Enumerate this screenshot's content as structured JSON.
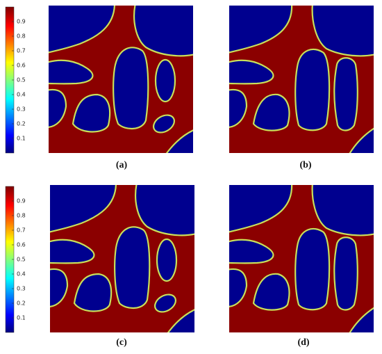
{
  "colorbars": [
    {
      "ticks": [
        0.9,
        0.8,
        0.7,
        0.6,
        0.5,
        0.4,
        0.3,
        0.2,
        0.1
      ]
    },
    {
      "ticks": [
        0.9,
        0.8,
        0.7,
        0.6,
        0.5,
        0.4,
        0.3,
        0.2,
        0.1
      ]
    }
  ],
  "panels": [
    {
      "label": "(a)"
    },
    {
      "label": "(b)"
    },
    {
      "label": "(c)"
    },
    {
      "label": "(d)"
    }
  ]
}
